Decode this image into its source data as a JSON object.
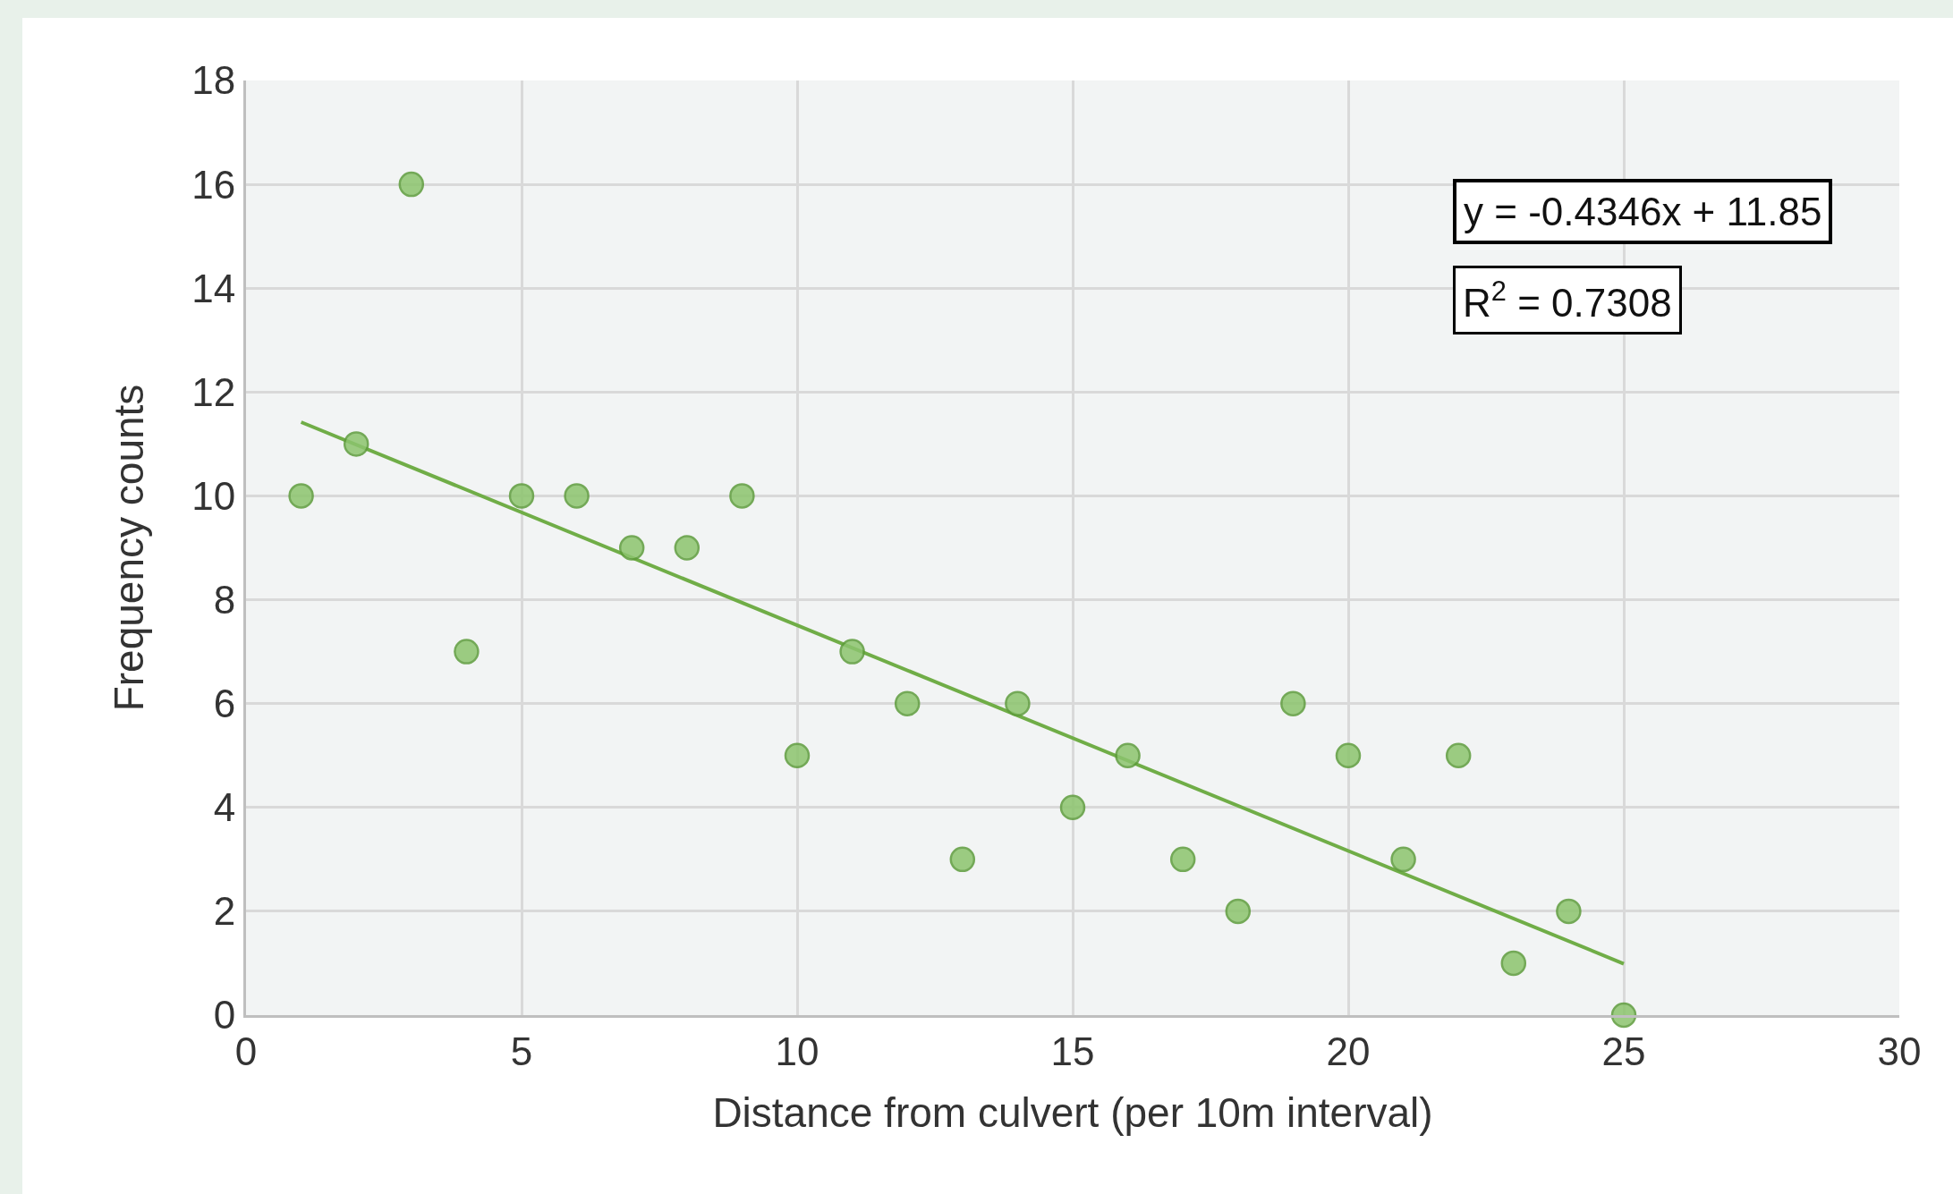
{
  "chart_data": {
    "type": "scatter",
    "xlabel": "Distance from culvert (per 10m interval)",
    "ylabel": "Frequency counts",
    "x": [
      1,
      2,
      3,
      4,
      5,
      6,
      7,
      8,
      9,
      10,
      11,
      12,
      13,
      14,
      15,
      16,
      17,
      18,
      19,
      20,
      21,
      22,
      23,
      24,
      25
    ],
    "series": [
      {
        "color": "#8cc46e",
        "marker": "circle",
        "values": [
          10,
          11,
          16,
          7,
          10,
          10,
          9,
          9,
          10,
          5,
          7,
          6,
          3,
          6,
          4,
          5,
          3,
          2,
          6,
          5,
          3,
          5,
          1,
          2,
          0
        ]
      },
      {
        "type": "line",
        "color": "#70ad47",
        "line_style": "solid",
        "x": [
          1,
          25
        ],
        "values": [
          11.42,
          0.99
        ]
      }
    ],
    "xlim": [
      0,
      30
    ],
    "xticks": [
      0,
      5,
      10,
      15,
      20,
      25,
      30
    ],
    "ylim": [
      0,
      18
    ],
    "yticks": [
      0,
      2,
      4,
      6,
      8,
      10,
      12,
      14,
      16,
      18
    ],
    "grid": true,
    "annotations": [
      "y = -0.4346x + 11.85",
      "R$^{2}$ = 0.7308"
    ]
  }
}
